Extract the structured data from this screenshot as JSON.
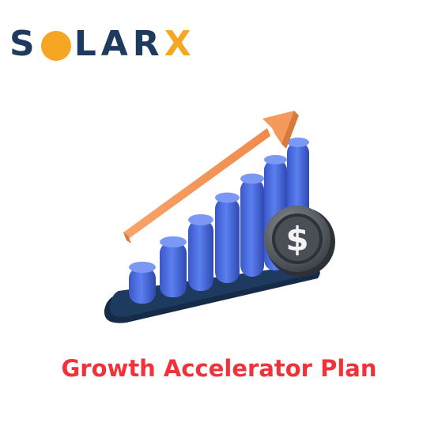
{
  "brand": {
    "logo_prefix": "S",
    "logo_suffix": "LARX",
    "colors": {
      "navy": "#1f3a5f",
      "sun": "#f5a623",
      "suffix_x": "#f5a623"
    }
  },
  "illustration": {
    "icon": "growth-bar-chart-with-arrow-and-dollar-coin",
    "bar_color": "#4a6fe0",
    "arrow_color": "#f39a5c",
    "base_color": "#1e3a5f",
    "coin_color": "#5a5f66"
  },
  "caption": {
    "text": "Growth Accelerator Plan",
    "color": "#f0333a"
  }
}
